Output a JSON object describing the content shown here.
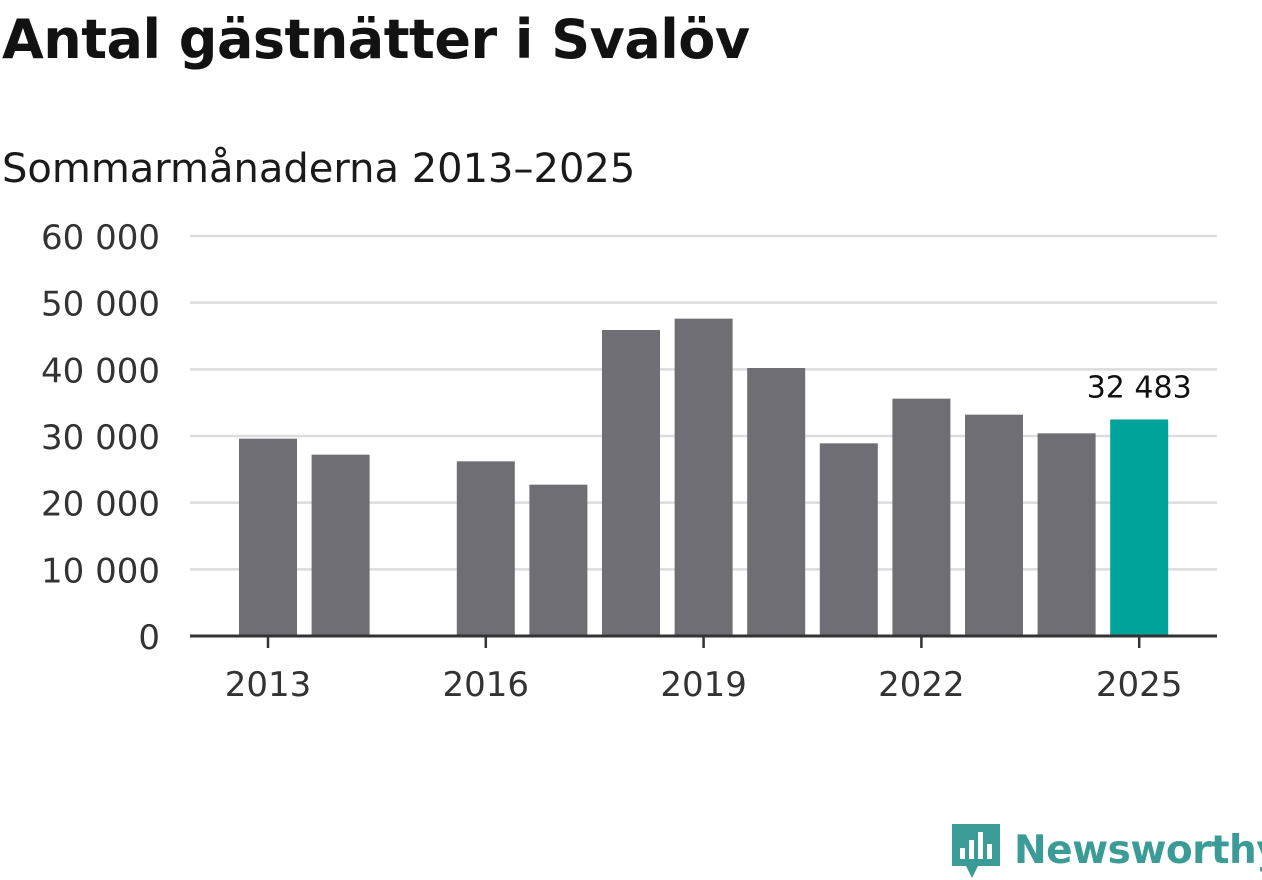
{
  "title": "Antal gästnätter i Svalöv",
  "subtitle": "Sommarmånaderna 2013–2025",
  "brand": {
    "name": "Newsworthy"
  },
  "colors": {
    "bar": "#6f6e74",
    "highlight": "#00a39a",
    "grid": "#dcdcdc",
    "axis": "#333333",
    "brand": "#3b9c97"
  },
  "chart_data": {
    "type": "bar",
    "title": "Antal gästnätter i Svalöv",
    "subtitle": "Sommarmånaderna 2013–2025",
    "categories": [
      "2013",
      "2014",
      "2015",
      "2016",
      "2017",
      "2018",
      "2019",
      "2020",
      "2021",
      "2022",
      "2023",
      "2024",
      "2025"
    ],
    "values": [
      29600,
      27200,
      null,
      26200,
      22700,
      45900,
      47600,
      40200,
      28900,
      35600,
      33200,
      30400,
      32483
    ],
    "highlight_index": 12,
    "highlight_label": "32 483",
    "x_tick_labels": [
      "2013",
      "2016",
      "2019",
      "2022",
      "2025"
    ],
    "y_tick_labels": [
      "0",
      "10 000",
      "20 000",
      "30 000",
      "40 000",
      "50 000",
      "60 000"
    ],
    "ylim": [
      0,
      60000
    ],
    "grid": true
  }
}
